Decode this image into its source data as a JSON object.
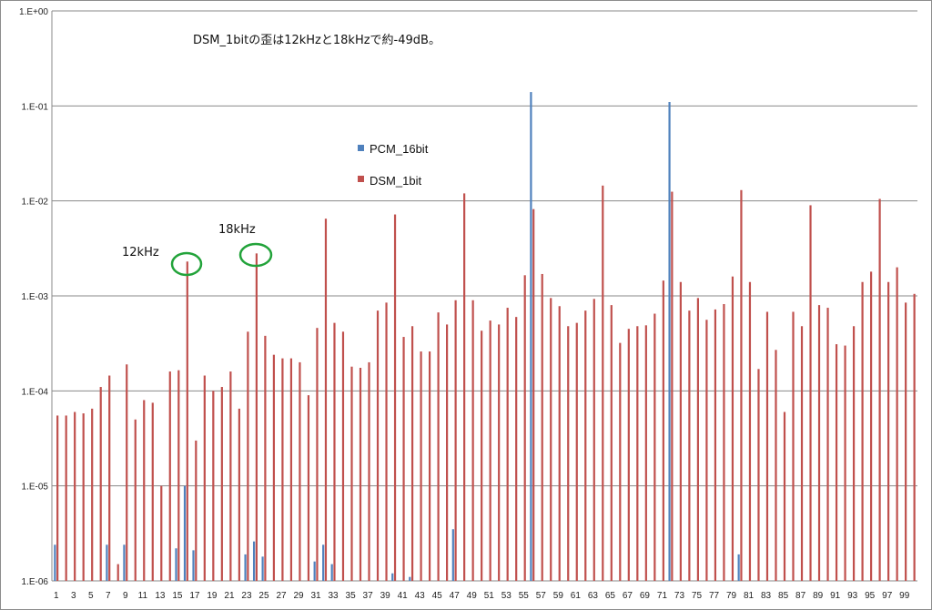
{
  "chart_data": {
    "type": "bar",
    "title": "",
    "annotation": "DSM_1bitの歪は12kHzと18kHzで約-49dB。",
    "marker_labels": [
      "12kHz",
      "18kHz"
    ],
    "yscale": "log",
    "ylim": [
      1e-06,
      1
    ],
    "y_tick_labels": [
      "1.E+00",
      "1.E-01",
      "1.E-02",
      "1.E-03",
      "1.E-04",
      "1.E-05",
      "1.E-06"
    ],
    "x_tick_labels": [
      "1",
      "3",
      "5",
      "7",
      "9",
      "11",
      "13",
      "15",
      "17",
      "19",
      "21",
      "23",
      "25",
      "27",
      "29",
      "31",
      "33",
      "35",
      "37",
      "39",
      "41",
      "43",
      "45",
      "47",
      "49",
      "51",
      "53",
      "55",
      "57",
      "59",
      "61",
      "63",
      "65",
      "67",
      "69",
      "71",
      "73",
      "75",
      "77",
      "79",
      "81",
      "83",
      "85",
      "87",
      "89",
      "91",
      "93",
      "95",
      "97",
      "99"
    ],
    "grid": true,
    "legend_position": "top-center",
    "categories": [
      1,
      2,
      3,
      4,
      5,
      6,
      7,
      8,
      9,
      10,
      11,
      12,
      13,
      14,
      15,
      16,
      17,
      18,
      19,
      20,
      21,
      22,
      23,
      24,
      25,
      26,
      27,
      28,
      29,
      30,
      31,
      32,
      33,
      34,
      35,
      36,
      37,
      38,
      39,
      40,
      41,
      42,
      43,
      44,
      45,
      46,
      47,
      48,
      49,
      50,
      51,
      52,
      53,
      54,
      55,
      56,
      57,
      58,
      59,
      60,
      61,
      62,
      63,
      64,
      65,
      66,
      67,
      68,
      69,
      70,
      71,
      72,
      73,
      74,
      75,
      76,
      77,
      78,
      79,
      80,
      81,
      82,
      83,
      84,
      85,
      86,
      87,
      88,
      89,
      90,
      91,
      92,
      93,
      94,
      95,
      96,
      97,
      98,
      99,
      100
    ],
    "series": [
      {
        "name": "PCM_16bit",
        "color": "#4f81bd",
        "values": [
          2.4e-06,
          null,
          null,
          null,
          null,
          null,
          2.4e-06,
          null,
          2.4e-06,
          null,
          null,
          null,
          null,
          null,
          2.2e-06,
          1e-05,
          2.1e-06,
          null,
          null,
          null,
          null,
          null,
          1.9e-06,
          2.6e-06,
          1.8e-06,
          null,
          null,
          null,
          null,
          null,
          1.6e-06,
          2.4e-06,
          1.5e-06,
          null,
          null,
          null,
          null,
          null,
          null,
          1.2e-06,
          null,
          1.1e-06,
          null,
          null,
          null,
          null,
          3.5e-06,
          null,
          null,
          null,
          null,
          null,
          null,
          null,
          null,
          0.14,
          null,
          null,
          null,
          null,
          null,
          null,
          null,
          null,
          null,
          null,
          null,
          null,
          null,
          null,
          null,
          0.11,
          null,
          null,
          null,
          null,
          null,
          null,
          null,
          1.9e-06,
          null,
          null,
          null,
          null,
          null,
          null,
          null,
          null,
          null,
          null,
          null,
          null,
          null,
          null,
          null,
          null,
          null,
          null,
          null,
          null
        ]
      },
      {
        "name": "DSM_1bit",
        "color": "#c0504d",
        "values": [
          5.5e-05,
          5.5e-05,
          6e-05,
          5.8e-05,
          6.5e-05,
          0.00011,
          0.000145,
          1.5e-06,
          0.00019,
          5e-05,
          8e-05,
          7.5e-05,
          1e-05,
          0.00016,
          0.000165,
          0.0023,
          3e-05,
          0.000145,
          0.0001,
          0.00011,
          0.00016,
          6.5e-05,
          0.00042,
          0.0028,
          0.00038,
          0.00024,
          0.00022,
          0.00022,
          0.0002,
          9e-05,
          0.00046,
          0.0065,
          0.00052,
          0.00042,
          0.00018,
          0.000175,
          0.0002,
          0.0007,
          0.00085,
          0.0072,
          0.00037,
          0.00048,
          0.00026,
          0.00026,
          0.00067,
          0.0005,
          0.0009,
          0.012,
          0.0009,
          0.00043,
          0.00055,
          0.0005,
          0.00075,
          0.0006,
          0.00165,
          0.0082,
          0.0017,
          0.00095,
          0.00078,
          0.00048,
          0.00052,
          0.0007,
          0.00093,
          0.0145,
          0.0008,
          0.00032,
          0.00045,
          0.00048,
          0.00049,
          0.00065,
          0.00145,
          0.0125,
          0.0014,
          0.0007,
          0.00095,
          0.00056,
          0.00072,
          0.00082,
          0.0016,
          0.013,
          0.0014,
          0.00017,
          0.00068,
          0.00027,
          6e-05,
          0.00068,
          0.00048,
          0.009,
          0.0008,
          0.00075,
          0.00031,
          0.0003,
          0.00048,
          0.0014,
          0.0018,
          0.0105,
          0.0014,
          0.002,
          0.00085,
          0.00105
        ]
      }
    ]
  }
}
